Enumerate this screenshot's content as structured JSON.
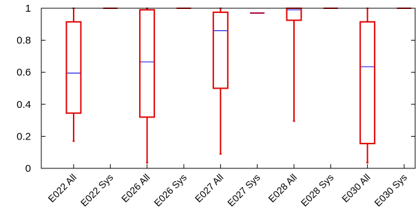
{
  "chart_data": {
    "type": "box",
    "title": "",
    "xlabel": "",
    "ylabel": "",
    "ylim": [
      0,
      1
    ],
    "yticks": [
      "0",
      "0.2",
      "0.4",
      "0.6",
      "0.8",
      "1"
    ],
    "grid": false,
    "legend": "none",
    "colors": {
      "box": "#e00000",
      "median": "#2020e0",
      "axis": "#000000"
    },
    "categories": [
      "E022 All",
      "E022 Sys",
      "E026 All",
      "E026 Sys",
      "E027 All",
      "E027 Sys",
      "E028 All",
      "E028 Sys",
      "E030 All",
      "E030 Sys"
    ],
    "boxes": [
      {
        "min": 0.17,
        "q1": 0.345,
        "median": 0.595,
        "q3": 0.915,
        "max": 1.0
      },
      {
        "min": 1.0,
        "q1": 1.0,
        "median": 1.0,
        "q3": 1.0,
        "max": 1.0
      },
      {
        "min": 0.035,
        "q1": 0.32,
        "median": 0.665,
        "q3": 0.99,
        "max": 1.0
      },
      {
        "min": 1.0,
        "q1": 1.0,
        "median": 1.0,
        "q3": 1.0,
        "max": 1.0
      },
      {
        "min": 0.09,
        "q1": 0.5,
        "median": 0.86,
        "q3": 0.975,
        "max": 1.0
      },
      {
        "min": 0.97,
        "q1": 0.97,
        "median": 0.97,
        "q3": 0.97,
        "max": 0.97
      },
      {
        "min": 0.295,
        "q1": 0.925,
        "median": 0.99,
        "q3": 1.0,
        "max": 1.0
      },
      {
        "min": 1.0,
        "q1": 1.0,
        "median": 1.0,
        "q3": 1.0,
        "max": 1.0
      },
      {
        "min": 0.035,
        "q1": 0.155,
        "median": 0.635,
        "q3": 0.915,
        "max": 1.0
      },
      {
        "min": 1.0,
        "q1": 1.0,
        "median": 1.0,
        "q3": 1.0,
        "max": 1.0
      }
    ]
  }
}
